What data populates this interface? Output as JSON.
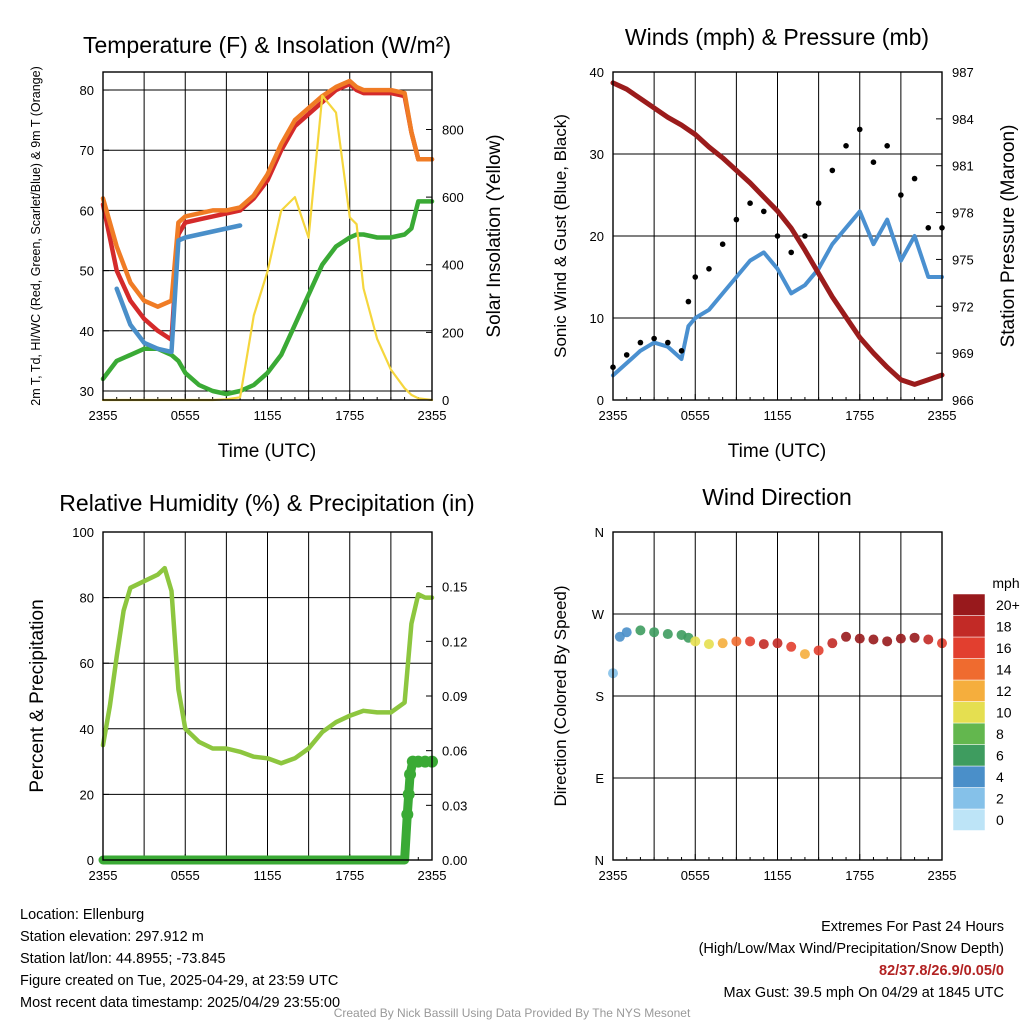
{
  "chart_data": [
    {
      "type": "line",
      "title": "Temperature (F) & Insolation (W/m²)",
      "xlabel": "Time (UTC)",
      "ylabel": "2m T, Td, HI/WC (Red, Green, Scarlet/Blue) & 9m T (Orange)",
      "ylabel_right": "Solar Insolation (Yellow)",
      "x_ticks": [
        "2355",
        "0555",
        "1155",
        "1755",
        "2355"
      ],
      "ylim": [
        28.5,
        83
      ],
      "y_ticks": [
        30,
        40,
        50,
        60,
        70,
        80
      ],
      "ylim_right": [
        0,
        970
      ],
      "y_ticks_right": [
        0,
        200,
        400,
        600,
        800
      ],
      "x_hours": [
        0,
        1,
        2,
        3,
        4,
        5,
        5.5,
        6,
        7,
        8,
        9,
        10,
        11,
        12,
        13,
        14,
        15,
        16,
        17,
        18,
        18.5,
        19,
        20,
        21,
        22,
        22.5,
        23,
        24
      ],
      "series": [
        {
          "name": "2m T",
          "color": "#d42a2a",
          "values": [
            61,
            50,
            45,
            42,
            40,
            38.5,
            56,
            58,
            58.5,
            59,
            59.5,
            60,
            62,
            65,
            70,
            74,
            76,
            78,
            80,
            81,
            80,
            79.5,
            79.5,
            79.5,
            79,
            73,
            68.5,
            68.5
          ]
        },
        {
          "name": "9m T",
          "color": "#f07c25",
          "values": [
            62,
            54,
            48,
            45,
            44,
            45,
            58,
            59,
            59.5,
            60,
            60,
            60.5,
            62.5,
            66,
            71,
            75,
            77,
            79,
            80.5,
            81.5,
            80.5,
            80,
            80,
            80,
            79.5,
            73,
            68.5,
            68.5
          ]
        },
        {
          "name": "Td",
          "color": "#3aaa35",
          "values": [
            32,
            35,
            36,
            37,
            37,
            36,
            35,
            33,
            31,
            30,
            29.5,
            30,
            31,
            33,
            36,
            41,
            46,
            51,
            54,
            55.5,
            56,
            56,
            55.5,
            55.5,
            56,
            57,
            61.5,
            61.5
          ]
        },
        {
          "name": "HI/WC",
          "color": "#4a8fc9",
          "values": [
            null,
            47,
            41,
            38,
            37,
            36.5,
            55,
            55.5,
            56,
            56.5,
            57,
            57.5,
            null,
            null,
            null,
            null,
            null,
            null,
            null,
            null,
            null,
            null,
            null,
            null,
            null,
            null,
            null,
            null
          ]
        },
        {
          "name": "Solar Insolation",
          "color": "#f5d63d",
          "axis": "right",
          "values": [
            0,
            0,
            0,
            0,
            0,
            0,
            0,
            0,
            0,
            0,
            2,
            8,
            250,
            380,
            560,
            600,
            480,
            900,
            850,
            540,
            520,
            330,
            180,
            90,
            35,
            15,
            5,
            0
          ]
        }
      ]
    },
    {
      "type": "line",
      "title": "Winds (mph) & Pressure (mb)",
      "xlabel": "Time (UTC)",
      "ylabel": "Sonic Wind & Gust (Blue, Black)",
      "ylabel_right": "Station Pressure (Maroon)",
      "x_ticks": [
        "2355",
        "0555",
        "1155",
        "1755",
        "2355"
      ],
      "ylim": [
        0,
        40
      ],
      "y_ticks": [
        0,
        10,
        20,
        30,
        40
      ],
      "ylim_right": [
        966,
        987
      ],
      "y_ticks_right": [
        966,
        969,
        972,
        975,
        978,
        981,
        984,
        987
      ],
      "x_hours": [
        0,
        1,
        2,
        3,
        4,
        5,
        5.5,
        6,
        7,
        8,
        9,
        10,
        11,
        12,
        13,
        14,
        15,
        16,
        17,
        18,
        19,
        20,
        21,
        22,
        23,
        24
      ],
      "series": [
        {
          "name": "Sonic Wind",
          "color": "#4a90d0",
          "values": [
            3,
            4.5,
            6,
            7,
            6.5,
            5,
            9,
            10,
            11,
            13,
            15,
            17,
            18,
            16,
            13,
            14,
            16,
            19,
            21,
            23,
            19,
            22,
            17,
            20,
            15,
            15
          ]
        },
        {
          "name": "Gust",
          "color": "#000000",
          "marker": "dot",
          "values": [
            4,
            5.5,
            7,
            7.5,
            7,
            6,
            12,
            15,
            16,
            19,
            22,
            24,
            23,
            20,
            18,
            20,
            24,
            28,
            31,
            33,
            29,
            31,
            25,
            27,
            21,
            21
          ]
        },
        {
          "name": "Station Pressure",
          "color": "#9b1c1c",
          "axis": "right",
          "values": [
            986.3,
            985.9,
            985.3,
            984.7,
            984.1,
            983.6,
            983.3,
            983.0,
            982.2,
            981.5,
            980.7,
            979.9,
            979.0,
            978.1,
            977.0,
            975.6,
            974.1,
            972.6,
            971.3,
            970.0,
            969.0,
            968.1,
            967.3,
            967.0,
            967.3,
            967.6
          ]
        }
      ]
    },
    {
      "type": "line",
      "title": "Relative Humidity (%) & Precipitation (in)",
      "xlabel": "",
      "ylabel": "Percent & Precipitation",
      "x_ticks": [
        "2355",
        "0555",
        "1155",
        "1755",
        "2355"
      ],
      "ylim": [
        0,
        100
      ],
      "y_ticks": [
        0,
        20,
        40,
        60,
        80,
        100
      ],
      "ylim_right": [
        0,
        0.18
      ],
      "y_ticks_right": [
        "0.00",
        "0.03",
        "0.06",
        "0.09",
        "0.12",
        "0.15"
      ],
      "x_hours": [
        0,
        0.5,
        1,
        1.5,
        2,
        3,
        4,
        4.5,
        5,
        5.5,
        6,
        7,
        8,
        9,
        10,
        11,
        12,
        13,
        14,
        15,
        16,
        17,
        18,
        19,
        20,
        21,
        22,
        22.5,
        23,
        23.5,
        24
      ],
      "series": [
        {
          "name": "Relative Humidity",
          "color": "#8dc63f",
          "values": [
            35,
            47,
            62,
            76,
            83,
            85,
            87,
            89,
            82,
            52,
            40,
            36,
            34,
            34,
            33,
            31.5,
            31,
            29.5,
            31,
            34,
            39,
            42,
            44,
            45.5,
            45,
            45,
            48,
            72,
            81,
            80,
            80
          ]
        }
      ],
      "precip": {
        "name": "Precipitation",
        "color": "#3aaa35",
        "x_hours": [
          0,
          22,
          22.2,
          22.3,
          22.4,
          22.6,
          23,
          23.5,
          24
        ],
        "values": [
          0,
          0,
          0.025,
          0.036,
          0.047,
          0.054,
          0.054,
          0.054,
          0.054
        ]
      }
    },
    {
      "type": "scatter",
      "title": "Wind Direction",
      "ylabel": "Direction (Colored By Speed)",
      "x_ticks": [
        "2355",
        "0555",
        "1155",
        "1755",
        "2355"
      ],
      "y_ticks": [
        "N",
        "E",
        "S",
        "W",
        "N"
      ],
      "ylim": [
        0,
        360
      ],
      "legend_title": "mph",
      "legend_labels": [
        "0",
        "2",
        "4",
        "6",
        "8",
        "10",
        "12",
        "14",
        "16",
        "18",
        "20+"
      ],
      "legend_colors": [
        "#bde4f7",
        "#85c1e9",
        "#4a8fc9",
        "#3e9c5f",
        "#63b74e",
        "#e5df50",
        "#f5ae3d",
        "#ef6b2f",
        "#e23f2f",
        "#c22a26",
        "#98191c"
      ],
      "x_hours": [
        0,
        0.5,
        1,
        2,
        3,
        4,
        5,
        5.5,
        6,
        7,
        8,
        9,
        10,
        11,
        12,
        13,
        14,
        15,
        16,
        17,
        18,
        19,
        20,
        21,
        22,
        23,
        24
      ],
      "directions": [
        205,
        245,
        250,
        252,
        250,
        248,
        247,
        244,
        240,
        237,
        238,
        240,
        240,
        237,
        238,
        234,
        226,
        230,
        238,
        245,
        243,
        242,
        240,
        243,
        244,
        242,
        238
      ],
      "speeds": [
        2,
        3,
        4,
        5,
        6,
        6,
        5,
        6,
        9,
        10,
        12,
        14,
        16,
        18,
        17,
        15,
        12,
        15,
        18,
        21,
        22,
        21,
        20,
        21,
        20,
        17,
        16
      ]
    }
  ],
  "info": {
    "location": "Location: Ellenburg",
    "elevation": "Station elevation: 297.912 m",
    "latlon": "Station lat/lon: 44.8955; -73.845",
    "created": "Figure created on Tue, 2025-04-29, at 23:59 UTC",
    "recent": "Most recent data timestamp: 2025/04/29 23:55:00",
    "extremes_title": "Extremes For Past 24 Hours",
    "extremes_sub": "(High/Low/Max Wind/Precipitation/Snow Depth)",
    "extremes_values": "82/37.8/26.9/0.05/0",
    "max_gust": "Max Gust: 39.5 mph On 04/29 at 1845 UTC",
    "credit": "Created By Nick Bassill Using Data Provided By The NYS Mesonet"
  }
}
